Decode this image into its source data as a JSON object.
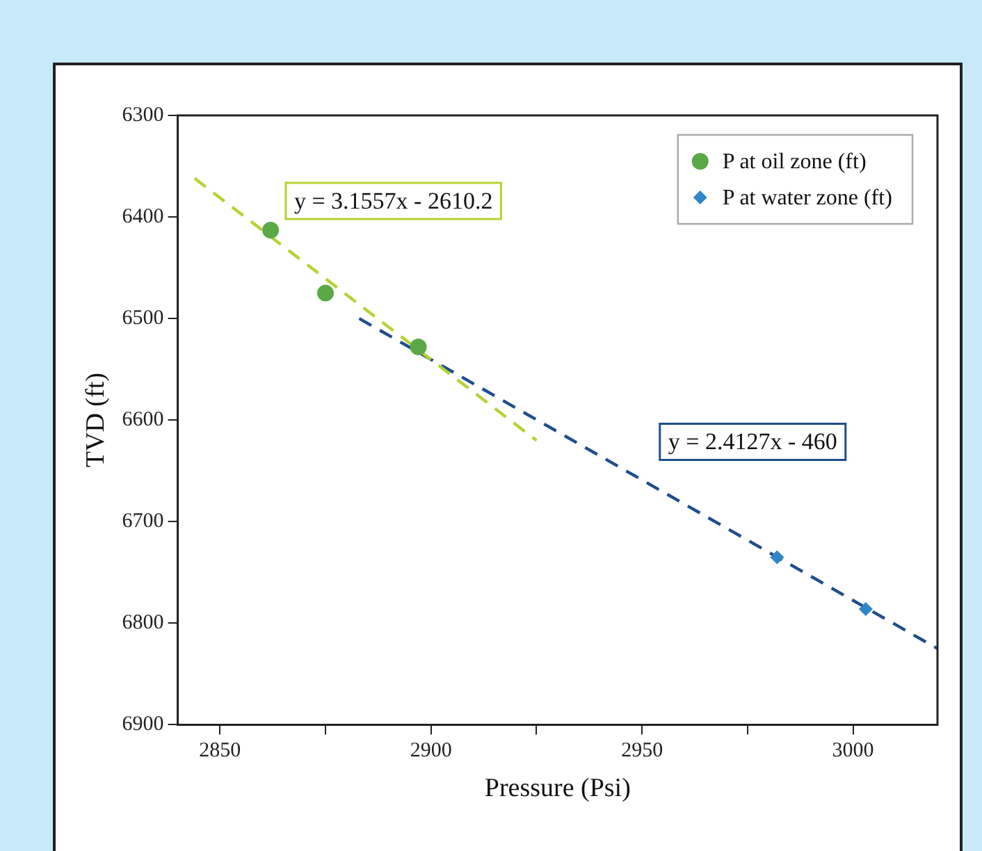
{
  "chart_data": {
    "type": "scatter",
    "xlabel": "Pressure (Psi)",
    "ylabel": "TVD (ft)",
    "xlim": [
      2840,
      3020
    ],
    "xticks": [
      2850,
      {
        "value": 2875,
        "label": null
      },
      2900,
      {
        "value": 2925,
        "label": null
      },
      2950,
      {
        "value": 2975,
        "label": null
      },
      3000
    ],
    "ylim": [
      6900,
      6300
    ],
    "yticks": [
      6300,
      6400,
      6500,
      6600,
      6700,
      6800,
      6900
    ],
    "grid": false,
    "legend": "top right",
    "annotations": [
      "y = 3.1557x - 2610.2",
      "y = 2.4127x - 460"
    ],
    "series": [
      {
        "name": "P at oil zone (ft)",
        "color": "#5aa846",
        "marker": "circle",
        "x": [
          2862,
          2875,
          2897
        ],
        "values": [
          6413,
          6475,
          6528
        ]
      },
      {
        "name": "P at water zone (ft)",
        "color": "#2f86c8",
        "marker": "diamond",
        "x": [
          2982,
          3003
        ],
        "values": [
          6735,
          6786
        ]
      },
      {
        "type": "line",
        "color": "#b5d334",
        "marker": "none",
        "line_style": "dashed",
        "x": [
          2844,
          2925
        ],
        "values": [
          6362,
          6620
        ]
      },
      {
        "type": "line",
        "color": "#1f4e8c",
        "marker": "none",
        "line_style": "dashed",
        "x": [
          2883,
          3020
        ],
        "values": [
          6500,
          6825
        ]
      }
    ]
  }
}
